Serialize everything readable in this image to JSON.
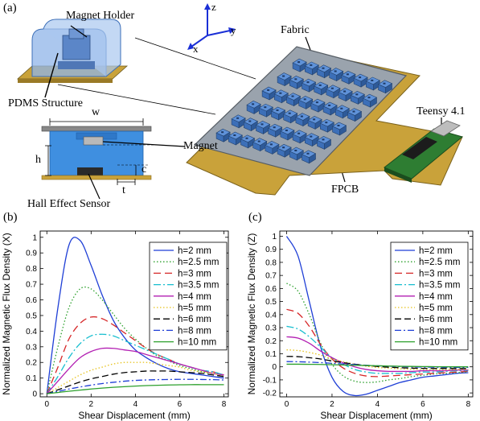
{
  "panel_a": {
    "label": "(a)",
    "callouts": {
      "magnet_holder": "Magnet Holder",
      "pdms": "PDMS Structure",
      "fabric": "Fabric",
      "teensy": "Teensy 4.1",
      "magnet": "Magnet",
      "hall": "Hall Effect Sensor",
      "fpcb": "FPCB"
    },
    "dims": {
      "w": "w",
      "h": "h",
      "c": "c",
      "t": "t"
    },
    "axes": {
      "z": "z",
      "y": "y",
      "x": "x"
    },
    "colors": {
      "fpcb": "#c9a23a",
      "fabric": "#8e9aa6",
      "pdms": "#4a86d8",
      "pcb": "#2e7d32"
    }
  },
  "panel_b": {
    "label": "(b)"
  },
  "panel_c": {
    "label": "(c)"
  },
  "chart_data": [
    {
      "type": "line",
      "xlabel": "Shear Displacement (mm)",
      "ylabel": "Normalized Magnetic Flux Density (X)",
      "xlim": [
        -0.3,
        8.2
      ],
      "ylim": [
        -0.02,
        1.04
      ],
      "xticks": [
        "0",
        "2",
        "4",
        "6",
        "8"
      ],
      "yticks": [
        "0",
        "0.1",
        "0.2",
        "0.3",
        "0.4",
        "0.5",
        "0.6",
        "0.7",
        "0.8",
        "0.9",
        "1"
      ],
      "grid": false,
      "legend_position": "top-right",
      "x": [
        0,
        0.5,
        1,
        1.5,
        2,
        2.5,
        3,
        3.5,
        4,
        4.5,
        5,
        5.5,
        6,
        6.5,
        7,
        7.5,
        8
      ],
      "series": [
        {
          "name": "h=2 mm",
          "color": "#1f3fd6",
          "dash": "",
          "values": [
            0,
            0.55,
            0.95,
            0.98,
            0.82,
            0.63,
            0.47,
            0.36,
            0.28,
            0.23,
            0.19,
            0.16,
            0.14,
            0.13,
            0.12,
            0.11,
            0.1
          ]
        },
        {
          "name": "h=2.5 mm",
          "color": "#2ca02c",
          "dash": "1.5,2.5",
          "values": [
            0,
            0.3,
            0.55,
            0.67,
            0.67,
            0.6,
            0.51,
            0.42,
            0.35,
            0.29,
            0.24,
            0.21,
            0.18,
            0.16,
            0.14,
            0.13,
            0.12
          ]
        },
        {
          "name": "h=3 mm",
          "color": "#d62728",
          "dash": "9,5",
          "values": [
            0,
            0.17,
            0.35,
            0.45,
            0.49,
            0.48,
            0.44,
            0.39,
            0.34,
            0.29,
            0.25,
            0.22,
            0.19,
            0.17,
            0.15,
            0.14,
            0.12
          ]
        },
        {
          "name": "h=3.5 mm",
          "color": "#17becf",
          "dash": "9,3,2,3",
          "values": [
            0,
            0.11,
            0.23,
            0.32,
            0.37,
            0.38,
            0.37,
            0.34,
            0.31,
            0.28,
            0.25,
            0.22,
            0.19,
            0.17,
            0.15,
            0.14,
            0.12
          ]
        },
        {
          "name": "h=4 mm",
          "color": "#b21fb2",
          "dash": "",
          "values": [
            0,
            0.08,
            0.16,
            0.23,
            0.27,
            0.29,
            0.29,
            0.28,
            0.27,
            0.25,
            0.23,
            0.21,
            0.19,
            0.17,
            0.15,
            0.13,
            0.12
          ]
        },
        {
          "name": "h=5 mm",
          "color": "#e6c21a",
          "dash": "1.5,2.5",
          "values": [
            0,
            0.04,
            0.08,
            0.12,
            0.15,
            0.17,
            0.19,
            0.2,
            0.2,
            0.2,
            0.19,
            0.18,
            0.17,
            0.15,
            0.14,
            0.13,
            0.11
          ]
        },
        {
          "name": "h=6 mm",
          "color": "#000000",
          "dash": "8,4",
          "values": [
            0,
            0.025,
            0.05,
            0.075,
            0.095,
            0.11,
            0.125,
            0.135,
            0.14,
            0.145,
            0.145,
            0.145,
            0.14,
            0.135,
            0.13,
            0.12,
            0.11
          ]
        },
        {
          "name": "h=8 mm",
          "color": "#1f3fd6",
          "dash": "8,3,2,3",
          "values": [
            0,
            0.015,
            0.03,
            0.043,
            0.055,
            0.065,
            0.073,
            0.08,
            0.085,
            0.088,
            0.09,
            0.091,
            0.092,
            0.092,
            0.091,
            0.09,
            0.088
          ]
        },
        {
          "name": "h=10 mm",
          "color": "#2ca02c",
          "dash": "",
          "values": [
            0,
            0.008,
            0.016,
            0.023,
            0.03,
            0.036,
            0.041,
            0.045,
            0.049,
            0.052,
            0.054,
            0.056,
            0.057,
            0.058,
            0.058,
            0.058,
            0.058
          ]
        }
      ]
    },
    {
      "type": "line",
      "xlabel": "Shear Displacement (mm)",
      "ylabel": "Normalized Magnetic Flux Density (Z)",
      "xlim": [
        -0.3,
        8.2
      ],
      "ylim": [
        -0.23,
        1.04
      ],
      "xticks": [
        "0",
        "2",
        "4",
        "6",
        "8"
      ],
      "yticks": [
        "-0.2",
        "-0.1",
        "0",
        "0.1",
        "0.2",
        "0.3",
        "0.4",
        "0.5",
        "0.6",
        "0.7",
        "0.8",
        "0.9",
        "1"
      ],
      "grid": false,
      "legend_position": "top-right",
      "x": [
        0,
        0.5,
        1,
        1.5,
        2,
        2.5,
        3,
        3.5,
        4,
        4.5,
        5,
        5.5,
        6,
        6.5,
        7,
        7.5,
        8
      ],
      "series": [
        {
          "name": "h=2 mm",
          "color": "#1f3fd6",
          "dash": "",
          "values": [
            1,
            0.85,
            0.5,
            0.15,
            -0.08,
            -0.19,
            -0.22,
            -0.21,
            -0.18,
            -0.15,
            -0.12,
            -0.1,
            -0.08,
            -0.07,
            -0.06,
            -0.05,
            -0.045
          ]
        },
        {
          "name": "h=2.5 mm",
          "color": "#2ca02c",
          "dash": "1.5,2.5",
          "values": [
            0.64,
            0.58,
            0.4,
            0.18,
            0.02,
            -0.07,
            -0.11,
            -0.12,
            -0.115,
            -0.1,
            -0.09,
            -0.075,
            -0.065,
            -0.055,
            -0.05,
            -0.045,
            -0.04
          ]
        },
        {
          "name": "h=3 mm",
          "color": "#d62728",
          "dash": "9,5",
          "values": [
            0.44,
            0.41,
            0.31,
            0.17,
            0.06,
            -0.01,
            -0.05,
            -0.07,
            -0.075,
            -0.07,
            -0.065,
            -0.06,
            -0.055,
            -0.05,
            -0.045,
            -0.04,
            -0.035
          ]
        },
        {
          "name": "h=3.5 mm",
          "color": "#17becf",
          "dash": "9,3,2,3",
          "values": [
            0.31,
            0.29,
            0.23,
            0.15,
            0.07,
            0.02,
            -0.02,
            -0.04,
            -0.05,
            -0.05,
            -0.05,
            -0.045,
            -0.04,
            -0.04,
            -0.035,
            -0.03,
            -0.03
          ]
        },
        {
          "name": "h=4 mm",
          "color": "#b21fb2",
          "dash": "",
          "values": [
            0.23,
            0.22,
            0.18,
            0.12,
            0.07,
            0.03,
            0,
            -0.02,
            -0.03,
            -0.035,
            -0.035,
            -0.035,
            -0.03,
            -0.03,
            -0.03,
            -0.025,
            -0.025
          ]
        },
        {
          "name": "h=5 mm",
          "color": "#e6c21a",
          "dash": "1.5,2.5",
          "values": [
            0.13,
            0.125,
            0.11,
            0.09,
            0.06,
            0.04,
            0.02,
            0.005,
            -0.005,
            -0.01,
            -0.015,
            -0.018,
            -0.02,
            -0.02,
            -0.02,
            -0.02,
            -0.02
          ]
        },
        {
          "name": "h=6 mm",
          "color": "#000000",
          "dash": "8,4",
          "values": [
            0.08,
            0.078,
            0.07,
            0.06,
            0.045,
            0.032,
            0.02,
            0.01,
            0.003,
            -0.003,
            -0.007,
            -0.01,
            -0.012,
            -0.013,
            -0.013,
            -0.013,
            -0.013
          ]
        },
        {
          "name": "h=8 mm",
          "color": "#1f3fd6",
          "dash": "8,3,2,3",
          "values": [
            0.04,
            0.039,
            0.036,
            0.032,
            0.027,
            0.022,
            0.017,
            0.012,
            0.008,
            0.005,
            0.002,
            0,
            -0.002,
            -0.003,
            -0.004,
            -0.005,
            -0.005
          ]
        },
        {
          "name": "h=10 mm",
          "color": "#2ca02c",
          "dash": "",
          "values": [
            0.02,
            0.02,
            0.019,
            0.018,
            0.016,
            0.014,
            0.012,
            0.01,
            0.008,
            0.006,
            0.004,
            0.003,
            0.002,
            0.001,
            0,
            0,
            0
          ]
        }
      ]
    }
  ]
}
